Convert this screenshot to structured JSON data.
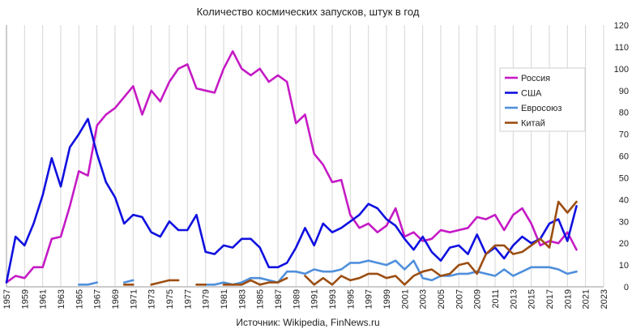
{
  "chart_data": {
    "type": "line",
    "title": "Количество космических запусков, штук в год",
    "source": "Источник: Wikipedia, FinNews.ru",
    "xlabel": "",
    "ylabel": "",
    "xlim": [
      1957,
      2023
    ],
    "ylim": [
      0,
      120
    ],
    "x_ticks": [
      1957,
      1959,
      1961,
      1963,
      1965,
      1967,
      1969,
      1971,
      1973,
      1975,
      1977,
      1979,
      1981,
      1983,
      1985,
      1987,
      1989,
      1991,
      1993,
      1995,
      1997,
      1999,
      2001,
      2003,
      2005,
      2007,
      2009,
      2011,
      2013,
      2015,
      2017,
      2019,
      2021,
      2023
    ],
    "y_ticks": [
      0,
      10,
      20,
      30,
      40,
      50,
      60,
      70,
      80,
      90,
      100,
      110,
      120
    ],
    "grid": "vertical",
    "legend_position": "top-right",
    "series": [
      {
        "name": "Россия",
        "color": "#c51ac5",
        "points": [
          [
            1957,
            2
          ],
          [
            1958,
            5
          ],
          [
            1959,
            4
          ],
          [
            1960,
            9
          ],
          [
            1961,
            9
          ],
          [
            1962,
            22
          ],
          [
            1963,
            23
          ],
          [
            1964,
            37
          ],
          [
            1965,
            53
          ],
          [
            1966,
            51
          ],
          [
            1967,
            74
          ],
          [
            1968,
            79
          ],
          [
            1969,
            82
          ],
          [
            1970,
            87
          ],
          [
            1971,
            92
          ],
          [
            1972,
            79
          ],
          [
            1973,
            90
          ],
          [
            1974,
            85
          ],
          [
            1975,
            94
          ],
          [
            1976,
            100
          ],
          [
            1977,
            102
          ],
          [
            1978,
            91
          ],
          [
            1979,
            90
          ],
          [
            1980,
            89
          ],
          [
            1981,
            100
          ],
          [
            1982,
            108
          ],
          [
            1983,
            100
          ],
          [
            1984,
            97
          ],
          [
            1985,
            100
          ],
          [
            1986,
            94
          ],
          [
            1987,
            97
          ],
          [
            1988,
            94
          ],
          [
            1989,
            75
          ],
          [
            1990,
            79
          ],
          [
            1991,
            61
          ],
          [
            1992,
            56
          ],
          [
            1993,
            48
          ],
          [
            1994,
            49
          ],
          [
            1995,
            33
          ],
          [
            1996,
            27
          ],
          [
            1997,
            29
          ],
          [
            1998,
            25
          ],
          [
            1999,
            28
          ],
          [
            2000,
            36
          ],
          [
            2001,
            23
          ],
          [
            2002,
            25
          ],
          [
            2003,
            21
          ],
          [
            2004,
            22
          ],
          [
            2005,
            26
          ],
          [
            2006,
            25
          ],
          [
            2007,
            26
          ],
          [
            2008,
            27
          ],
          [
            2009,
            32
          ],
          [
            2010,
            31
          ],
          [
            2011,
            33
          ],
          [
            2012,
            26
          ],
          [
            2013,
            33
          ],
          [
            2014,
            36
          ],
          [
            2015,
            29
          ],
          [
            2016,
            19
          ],
          [
            2017,
            21
          ],
          [
            2018,
            20
          ],
          [
            2019,
            25
          ],
          [
            2020,
            17
          ]
        ]
      },
      {
        "name": "США",
        "color": "#1010e0",
        "points": [
          [
            1957,
            2
          ],
          [
            1958,
            23
          ],
          [
            1959,
            19
          ],
          [
            1960,
            29
          ],
          [
            1961,
            42
          ],
          [
            1962,
            59
          ],
          [
            1963,
            46
          ],
          [
            1964,
            64
          ],
          [
            1965,
            70
          ],
          [
            1966,
            77
          ],
          [
            1967,
            61
          ],
          [
            1968,
            48
          ],
          [
            1969,
            41
          ],
          [
            1970,
            29
          ],
          [
            1971,
            33
          ],
          [
            1972,
            32
          ],
          [
            1973,
            25
          ],
          [
            1974,
            23
          ],
          [
            1975,
            30
          ],
          [
            1976,
            26
          ],
          [
            1977,
            26
          ],
          [
            1978,
            33
          ],
          [
            1979,
            16
          ],
          [
            1980,
            15
          ],
          [
            1981,
            19
          ],
          [
            1982,
            18
          ],
          [
            1983,
            22
          ],
          [
            1984,
            22
          ],
          [
            1985,
            18
          ],
          [
            1986,
            9
          ],
          [
            1987,
            9
          ],
          [
            1988,
            11
          ],
          [
            1989,
            18
          ],
          [
            1990,
            27
          ],
          [
            1991,
            19
          ],
          [
            1992,
            29
          ],
          [
            1993,
            25
          ],
          [
            1994,
            27
          ],
          [
            1995,
            30
          ],
          [
            1996,
            33
          ],
          [
            1997,
            38
          ],
          [
            1998,
            36
          ],
          [
            1999,
            31
          ],
          [
            2000,
            28
          ],
          [
            2001,
            22
          ],
          [
            2002,
            17
          ],
          [
            2003,
            23
          ],
          [
            2004,
            16
          ],
          [
            2005,
            12
          ],
          [
            2006,
            18
          ],
          [
            2007,
            19
          ],
          [
            2008,
            15
          ],
          [
            2009,
            24
          ],
          [
            2010,
            15
          ],
          [
            2011,
            18
          ],
          [
            2012,
            13
          ],
          [
            2013,
            19
          ],
          [
            2014,
            23
          ],
          [
            2015,
            20
          ],
          [
            2016,
            22
          ],
          [
            2017,
            29
          ],
          [
            2018,
            31
          ],
          [
            2019,
            21
          ],
          [
            2020,
            37
          ]
        ]
      },
      {
        "name": "Евросоюз",
        "color": "#4f8fdc",
        "segments": [
          [
            [
              1965,
              1
            ],
            [
              1966,
              1
            ],
            [
              1967,
              2
            ]
          ],
          [
            [
              1970,
              2
            ],
            [
              1971,
              3
            ]
          ],
          [
            [
              1979,
              1
            ],
            [
              1980,
              1
            ],
            [
              1981,
              2
            ],
            [
              1982,
              1
            ],
            [
              1983,
              2
            ],
            [
              1984,
              4
            ],
            [
              1985,
              4
            ],
            [
              1986,
              3
            ],
            [
              1987,
              2
            ],
            [
              1988,
              7
            ],
            [
              1989,
              7
            ],
            [
              1990,
              6
            ],
            [
              1991,
              8
            ],
            [
              1992,
              7
            ],
            [
              1993,
              7
            ],
            [
              1994,
              8
            ],
            [
              1995,
              11
            ],
            [
              1996,
              11
            ],
            [
              1997,
              12
            ],
            [
              1998,
              11
            ],
            [
              1999,
              10
            ],
            [
              2000,
              12
            ],
            [
              2001,
              8
            ],
            [
              2002,
              12
            ],
            [
              2003,
              4
            ],
            [
              2004,
              3
            ],
            [
              2005,
              5
            ],
            [
              2006,
              5
            ],
            [
              2007,
              6
            ],
            [
              2008,
              6
            ],
            [
              2009,
              7
            ],
            [
              2010,
              6
            ],
            [
              2011,
              5
            ],
            [
              2012,
              8
            ],
            [
              2013,
              5
            ],
            [
              2014,
              7
            ],
            [
              2015,
              9
            ],
            [
              2016,
              9
            ],
            [
              2017,
              9
            ],
            [
              2018,
              8
            ],
            [
              2019,
              6
            ],
            [
              2020,
              7
            ]
          ]
        ]
      },
      {
        "name": "Китай",
        "color": "#9c4e12",
        "segments": [
          [
            [
              1970,
              1
            ],
            [
              1971,
              1
            ]
          ],
          [
            [
              1973,
              1
            ],
            [
              1974,
              2
            ],
            [
              1975,
              3
            ],
            [
              1976,
              3
            ]
          ],
          [
            [
              1978,
              1
            ],
            [
              1979,
              1
            ]
          ],
          [
            [
              1981,
              1
            ],
            [
              1982,
              1
            ],
            [
              1983,
              1
            ],
            [
              1984,
              3
            ],
            [
              1985,
              1
            ],
            [
              1986,
              2
            ],
            [
              1987,
              2
            ],
            [
              1988,
              4
            ]
          ],
          [
            [
              1990,
              5
            ],
            [
              1991,
              1
            ],
            [
              1992,
              4
            ],
            [
              1993,
              1
            ],
            [
              1994,
              5
            ],
            [
              1995,
              3
            ],
            [
              1996,
              4
            ],
            [
              1997,
              6
            ],
            [
              1998,
              6
            ],
            [
              1999,
              4
            ],
            [
              2000,
              5
            ],
            [
              2001,
              1
            ],
            [
              2002,
              5
            ],
            [
              2003,
              7
            ],
            [
              2004,
              8
            ],
            [
              2005,
              5
            ],
            [
              2006,
              6
            ],
            [
              2007,
              10
            ],
            [
              2008,
              11
            ],
            [
              2009,
              6
            ],
            [
              2010,
              15
            ],
            [
              2011,
              19
            ],
            [
              2012,
              19
            ],
            [
              2013,
              15
            ],
            [
              2014,
              16
            ],
            [
              2015,
              19
            ],
            [
              2016,
              22
            ],
            [
              2017,
              18
            ],
            [
              2018,
              39
            ],
            [
              2019,
              34
            ],
            [
              2020,
              39
            ]
          ]
        ]
      }
    ]
  }
}
